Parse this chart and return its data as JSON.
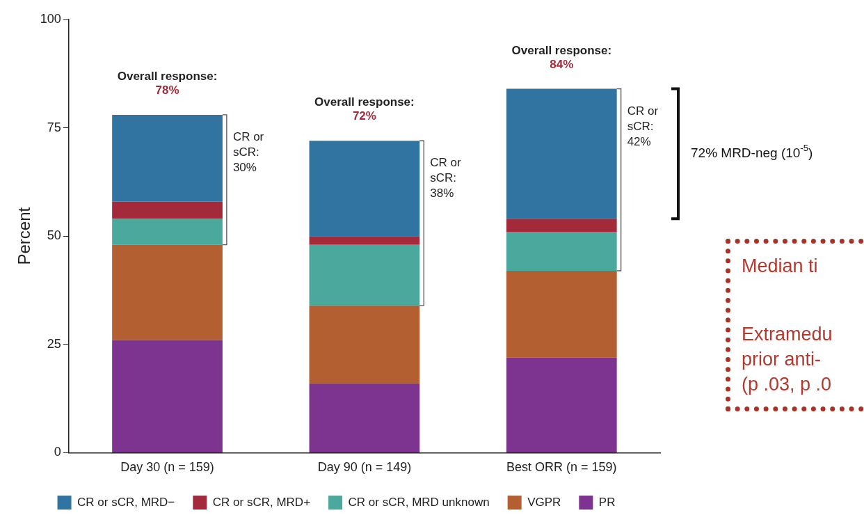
{
  "chart_data": {
    "type": "bar",
    "stacked": true,
    "ylabel": "Percent",
    "categories": [
      "Day 30 (n = 159)",
      "Day 90 (n = 149)",
      "Best ORR (n = 159)"
    ],
    "series": [
      {
        "name": "PR",
        "color": "#7d3490",
        "values": [
          26,
          16,
          22
        ]
      },
      {
        "name": "VGPR",
        "color": "#b35f32",
        "values": [
          22,
          18,
          20
        ]
      },
      {
        "name": "CR or sCR, MRD unknown",
        "color": "#4ba89c",
        "values": [
          6,
          14,
          9
        ]
      },
      {
        "name": "CR or sCR, MRD+",
        "color": "#a32a3a",
        "values": [
          4,
          2,
          3
        ]
      },
      {
        "name": "CR or sCR, MRD−",
        "color": "#3274a1",
        "values": [
          20,
          22,
          30
        ]
      }
    ],
    "totals": [
      "78%",
      "72%",
      "84%"
    ],
    "ylim": [
      0,
      100
    ],
    "yticks": [
      0,
      25,
      50,
      75,
      100
    ],
    "grid": false,
    "legend": "bottom",
    "annotations": [
      {
        "text": "Overall response:",
        "x": "Day 30 (n = 159)",
        "y": 78
      },
      {
        "text": "Overall response:",
        "x": "Day 90 (n = 149)",
        "y": 72
      },
      {
        "text": "Overall response:",
        "x": "Best ORR (n = 159)",
        "y": 84
      },
      "CR or sCR: 30%",
      "CR or sCR: 38%",
      "CR or sCR: 42%",
      "72% MRD-neg (10$^{-5}$)",
      "Median ti",
      "Extramedu",
      "prior anti-",
      "(p .03, p .0"
    ]
  }
}
